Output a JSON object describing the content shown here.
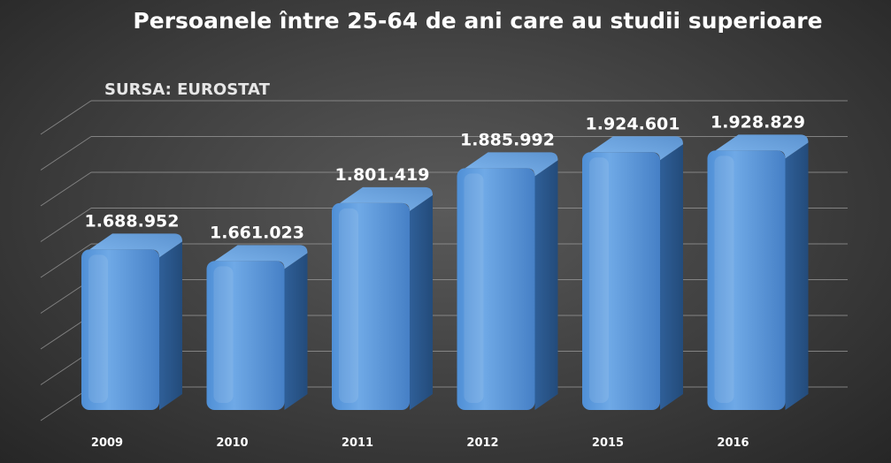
{
  "chart_data": {
    "type": "bar",
    "title": "Persoanele între 25-64 de ani care au studii superioare",
    "source_label": "SURSA: EUROSTAT",
    "categories": [
      "2009",
      "2010",
      "2011",
      "2012",
      "2015",
      "2016"
    ],
    "values": [
      1688952,
      1661023,
      1801419,
      1885992,
      1924601,
      1928829
    ],
    "value_labels": [
      "1.688.952",
      "1.661.023",
      "1.801.419",
      "1.885.992",
      "1.924.601",
      "1.928.829"
    ],
    "ylim": [
      1300000,
      2000000
    ],
    "grid": true,
    "bar_color": "#5b9bd5"
  }
}
